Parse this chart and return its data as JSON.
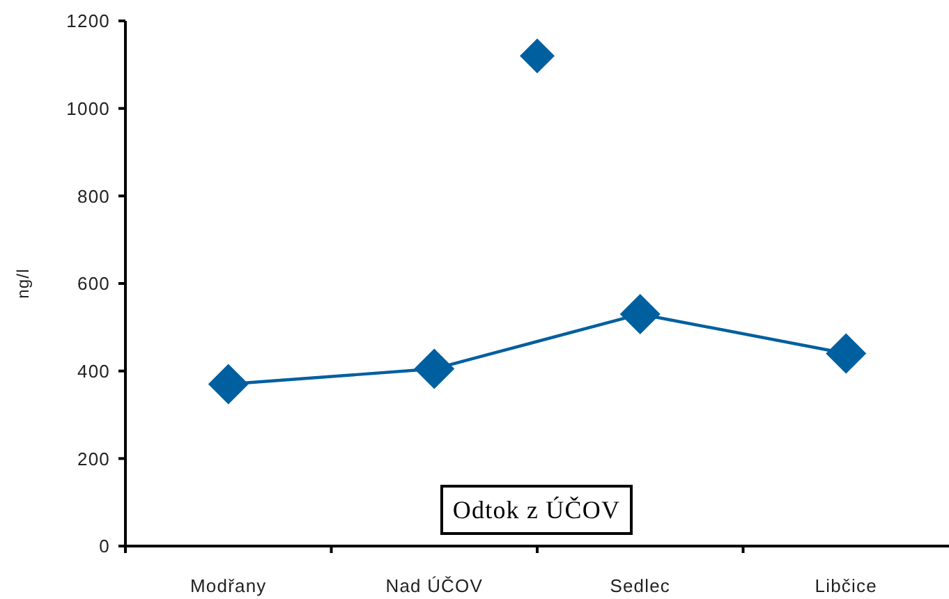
{
  "chart_data": {
    "type": "line",
    "ylabel": "ng/l",
    "categories": [
      "Modřany",
      null,
      "Nad ÚČOV",
      null,
      "Sedlec",
      null,
      "Libčice"
    ],
    "series": [
      {
        "color": "#005f9f",
        "values": [
          370,
          null,
          405,
          null,
          530,
          null,
          440
        ]
      },
      {
        "type": "scatter",
        "color": "#005f9f",
        "values": [
          null,
          null,
          null,
          1120,
          null,
          null,
          null
        ]
      }
    ],
    "ylim": [
      0,
      1200
    ],
    "yticks": [
      0,
      200,
      400,
      600,
      800,
      1000,
      1200
    ],
    "marker": "diamond",
    "line_style": "solid",
    "annotations": [
      "Odtok z ÚČOV"
    ]
  }
}
